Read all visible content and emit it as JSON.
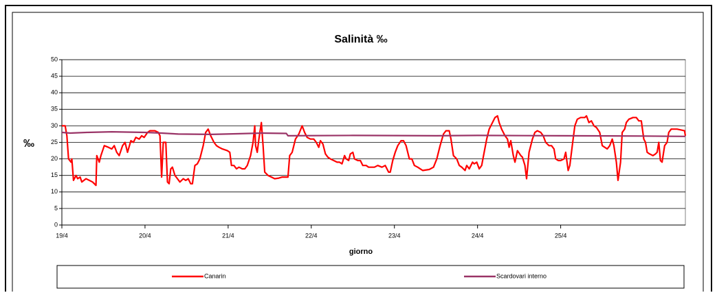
{
  "chart_data": {
    "type": "line",
    "title": "Salinità ‰",
    "y_label": "‰",
    "x_label": "giorno",
    "ylim": [
      0,
      50
    ],
    "yticks": [
      0,
      5,
      10,
      15,
      20,
      25,
      30,
      35,
      40,
      45,
      50
    ],
    "xlim": [
      0,
      7.5
    ],
    "xticks": [
      {
        "value": 0,
        "label": "19/4"
      },
      {
        "value": 1,
        "label": "20/4"
      },
      {
        "value": 2,
        "label": "21/4"
      },
      {
        "value": 3,
        "label": "22/4"
      },
      {
        "value": 4,
        "label": "23/4"
      },
      {
        "value": 5,
        "label": "24/4"
      },
      {
        "value": 6,
        "label": "25/4"
      }
    ],
    "grid": true,
    "legend": "bottom",
    "series": [
      {
        "name": "Canarin",
        "color": "#ff0000",
        "x": [
          0,
          0.04,
          0.06,
          0.08,
          0.11,
          0.12,
          0.14,
          0.17,
          0.19,
          0.22,
          0.24,
          0.29,
          0.33,
          0.37,
          0.41,
          0.42,
          0.45,
          0.47,
          0.51,
          0.56,
          0.6,
          0.63,
          0.66,
          0.69,
          0.73,
          0.76,
          0.79,
          0.83,
          0.86,
          0.89,
          0.93,
          0.96,
          0.99,
          1.03,
          1.06,
          1.12,
          1.16,
          1.18,
          1.2,
          1.22,
          1.25,
          1.27,
          1.29,
          1.31,
          1.33,
          1.36,
          1.39,
          1.42,
          1.46,
          1.49,
          1.52,
          1.55,
          1.57,
          1.6,
          1.63,
          1.66,
          1.7,
          1.73,
          1.76,
          1.79,
          1.83,
          1.86,
          1.89,
          1.93,
          1.99,
          2.02,
          2.04,
          2.07,
          2.1,
          2.13,
          2.17,
          2.2,
          2.23,
          2.27,
          2.3,
          2.32,
          2.33,
          2.35,
          2.37,
          2.4,
          2.42,
          2.44,
          2.48,
          2.52,
          2.56,
          2.61,
          2.65,
          2.72,
          2.74,
          2.77,
          2.81,
          2.85,
          2.89,
          2.92,
          2.95,
          2.99,
          3.03,
          3.06,
          3.09,
          3.11,
          3.14,
          3.17,
          3.2,
          3.23,
          3.27,
          3.31,
          3.34,
          3.37,
          3.4,
          3.42,
          3.45,
          3.47,
          3.5,
          3.52,
          3.56,
          3.59,
          3.62,
          3.66,
          3.69,
          3.76,
          3.8,
          3.85,
          3.89,
          3.93,
          3.95,
          3.98,
          4.01,
          4.04,
          4.08,
          4.11,
          4.14,
          4.18,
          4.21,
          4.24,
          4.28,
          4.31,
          4.34,
          4.42,
          4.47,
          4.51,
          4.55,
          4.59,
          4.62,
          4.66,
          4.68,
          4.71,
          4.75,
          4.78,
          4.81,
          4.85,
          4.87,
          4.9,
          4.94,
          4.96,
          4.99,
          5.02,
          5.05,
          5.08,
          5.11,
          5.14,
          5.18,
          5.21,
          5.24,
          5.26,
          5.29,
          5.33,
          5.36,
          5.38,
          5.4,
          5.43,
          5.45,
          5.48,
          5.52,
          5.54,
          5.57,
          5.59,
          5.62,
          5.66,
          5.69,
          5.72,
          5.76,
          5.79,
          5.82,
          5.86,
          5.89,
          5.92,
          5.94,
          5.97,
          6,
          6.04,
          6.06,
          6.09,
          6.11,
          6.14,
          6.17,
          6.2,
          6.24,
          6.29,
          6.31,
          6.34,
          6.37,
          6.4,
          6.43,
          6.47,
          6.5,
          6.53,
          6.56,
          6.59,
          6.62,
          6.64,
          6.67,
          6.69,
          6.72,
          6.74,
          6.77,
          6.79,
          6.82,
          6.87,
          6.91,
          6.94,
          6.97,
          7,
          7.02,
          7.04,
          7.07,
          7.11,
          7.14,
          7.16,
          7.18,
          7.2,
          7.22,
          7.25,
          7.28,
          7.3,
          7.33,
          7.4,
          7.49,
          7.5
        ],
        "values": [
          30,
          30,
          27,
          20,
          19,
          20,
          13.5,
          15,
          14,
          14.5,
          13,
          14,
          13.5,
          13,
          12,
          21,
          19,
          21,
          24,
          23.5,
          23,
          24,
          22,
          21,
          24,
          25,
          22,
          25.5,
          25,
          26.5,
          26,
          27,
          26.5,
          28,
          28.5,
          28.5,
          28,
          27,
          14.5,
          25,
          25,
          13,
          12.5,
          17,
          17.5,
          15,
          14,
          13,
          14,
          13.5,
          14,
          12.5,
          12.5,
          18,
          18.5,
          20,
          24,
          28,
          29,
          27,
          25,
          24,
          23.5,
          23,
          22.5,
          22,
          18,
          18,
          17,
          17.5,
          17,
          17,
          18,
          21,
          25,
          30,
          24,
          22,
          26,
          31,
          24,
          16,
          15,
          14.5,
          14,
          14.2,
          14.5,
          14.5,
          21,
          22,
          26,
          27.5,
          30,
          28,
          26.5,
          26,
          26,
          25,
          23.5,
          25.5,
          24.5,
          21.5,
          20.5,
          20,
          19.5,
          19,
          19,
          18.5,
          21,
          20,
          19.5,
          21.5,
          22,
          20,
          19.5,
          19.5,
          18,
          18,
          17.5,
          17.5,
          18,
          17.5,
          18,
          16,
          16,
          19.5,
          22,
          24,
          25.5,
          25.5,
          24,
          20,
          20,
          18,
          17.5,
          17,
          16.5,
          16.8,
          17.5,
          20,
          24,
          27.5,
          28.5,
          28.5,
          26,
          21,
          20,
          18,
          17.5,
          16.5,
          18,
          17,
          19,
          18.5,
          19,
          17,
          18,
          22,
          26,
          29,
          31,
          32.5,
          33,
          31,
          29,
          27,
          26,
          23.5,
          25.5,
          21,
          19,
          22.5,
          21,
          20.5,
          18,
          14,
          22,
          26,
          28,
          28.5,
          28,
          27,
          25,
          24,
          24,
          23,
          20,
          19.5,
          19.5,
          20,
          22,
          16.5,
          18,
          24,
          30,
          32,
          32.5,
          32.5,
          33,
          31,
          31.5,
          30,
          29.5,
          28,
          24,
          23.5,
          23,
          24,
          26,
          24,
          19,
          13.5,
          19,
          28,
          29,
          31,
          32,
          32.5,
          32.5,
          31.5,
          31.5,
          26,
          25,
          22,
          21.5,
          21,
          21.5,
          22,
          25,
          19.5,
          19,
          24,
          25,
          28,
          29,
          29,
          28.5,
          27
        ]
      },
      {
        "name": "Scardovari interno",
        "color": "#993366",
        "x": [
          0,
          0.1,
          0.3,
          0.6,
          1,
          1.2,
          1.4,
          1.8,
          2.1,
          2.4,
          2.7,
          2.72,
          3.5,
          4.5,
          5,
          6,
          7,
          7.5
        ],
        "values": [
          28,
          27.8,
          28,
          28.2,
          28,
          27.8,
          27.5,
          27.4,
          27.6,
          27.8,
          27.7,
          27,
          27.1,
          27,
          27.1,
          27,
          26.9,
          26.8
        ]
      }
    ]
  }
}
